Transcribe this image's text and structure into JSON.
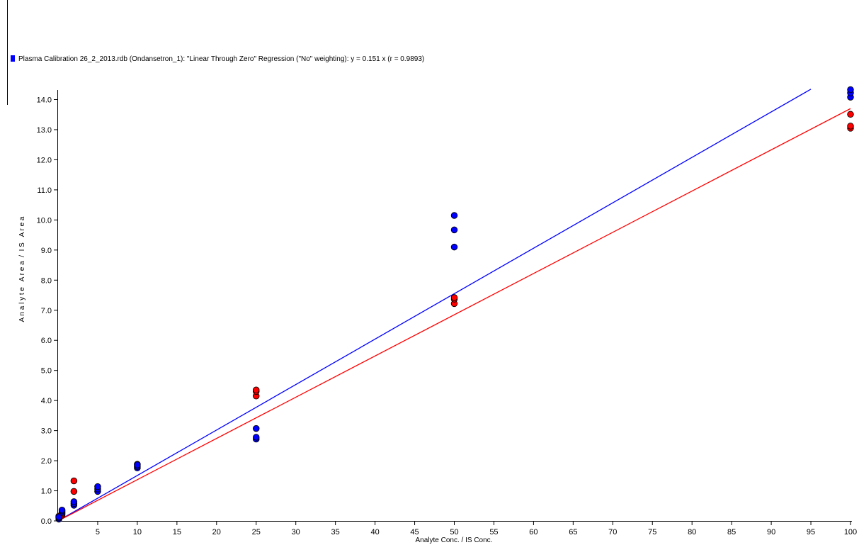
{
  "colors": {
    "series_a": "#0000ff",
    "series_b": "#ff0000",
    "axis": "#000000"
  },
  "legend": {
    "text": "Plasma Calibration 26_2_2013.rdb (Ondansetron_1): \"Linear Through Zero\" Regression (\"No\" weighting): y = 0.151 x (r = 0.9893)",
    "marker_color": "#0000ff",
    "placement": "top-left"
  },
  "chart_data": {
    "type": "scatter",
    "xlabel": "Analyte Conc. / IS Conc.",
    "ylabel": "A n a l y t e   A r e a  /  I S   A r e a",
    "xlim": [
      0,
      100
    ],
    "ylim": [
      0,
      14.2
    ],
    "x_ticks": [
      5,
      10,
      15,
      20,
      25,
      30,
      35,
      40,
      45,
      50,
      55,
      60,
      65,
      70,
      75,
      80,
      85,
      90,
      95,
      100
    ],
    "y_ticks": [
      "0.0",
      "1.0",
      "2.0",
      "3.0",
      "4.0",
      "5.0",
      "6.0",
      "7.0",
      "8.0",
      "9.0",
      "10.0",
      "11.0",
      "12.0",
      "13.0",
      "14.0"
    ],
    "grid": false,
    "series": [
      {
        "color": "#0000ff",
        "regression": {
          "slope": 0.151,
          "x_range": [
            0,
            95
          ]
        },
        "points": [
          [
            0.1,
            0.06
          ],
          [
            0.1,
            0.1
          ],
          [
            0.1,
            0.13
          ],
          [
            0.5,
            0.28
          ],
          [
            0.5,
            0.33
          ],
          [
            0.5,
            0.36
          ],
          [
            2,
            0.52
          ],
          [
            2,
            0.58
          ],
          [
            2,
            0.64
          ],
          [
            5,
            0.98
          ],
          [
            5,
            1.06
          ],
          [
            5,
            1.14
          ],
          [
            10,
            1.76
          ],
          [
            10,
            1.81
          ],
          [
            10,
            1.86
          ],
          [
            25,
            2.72
          ],
          [
            25,
            2.78
          ],
          [
            25,
            3.07
          ],
          [
            50,
            9.1
          ],
          [
            50,
            9.67
          ],
          [
            50,
            10.15
          ],
          [
            100,
            14.08
          ],
          [
            100,
            14.22
          ],
          [
            100,
            14.33
          ]
        ]
      },
      {
        "color": "#ff0000",
        "regression": {
          "slope": 0.137,
          "x_range": [
            0,
            100
          ]
        },
        "points": [
          [
            0.1,
            0.1
          ],
          [
            0.1,
            0.14
          ],
          [
            0.1,
            0.16
          ],
          [
            0.5,
            0.19
          ],
          [
            0.5,
            0.24
          ],
          [
            2,
            0.98
          ],
          [
            2,
            1.33
          ],
          [
            10,
            1.88
          ],
          [
            25,
            4.15
          ],
          [
            25,
            4.3
          ],
          [
            25,
            4.35
          ],
          [
            50,
            7.22
          ],
          [
            50,
            7.37
          ],
          [
            50,
            7.42
          ],
          [
            100,
            13.05
          ],
          [
            100,
            13.12
          ],
          [
            100,
            13.51
          ]
        ]
      }
    ]
  }
}
